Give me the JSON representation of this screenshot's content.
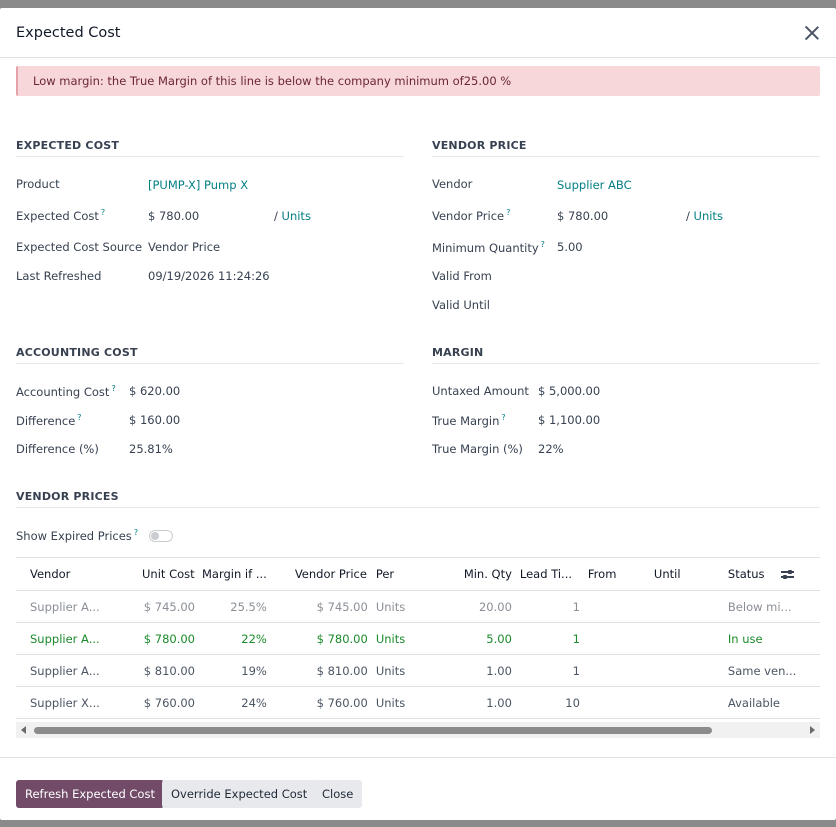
{
  "dialog": {
    "title": "Expected Cost"
  },
  "alert": {
    "text": "Low margin: the True Margin of this line is below the company minimum of25.00 %"
  },
  "expected_cost": {
    "title": "EXPECTED COST",
    "product_label": "Product",
    "product_value": "[PUMP-X] Pump X",
    "cost_label": "Expected Cost",
    "cost_value": "$ 780.00",
    "cost_uom": "/ Units",
    "source_label": "Expected Cost Source",
    "source_value": "Vendor Price",
    "refreshed_label": "Last Refreshed",
    "refreshed_value": "09/19/2026 11:24:26"
  },
  "vendor_price": {
    "title": "VENDOR PRICE",
    "vendor_label": "Vendor",
    "vendor_value": "Supplier ABC",
    "price_label": "Vendor Price",
    "price_value": "$ 780.00",
    "price_uom": "/ Units",
    "min_qty_label": "Minimum Quantity",
    "min_qty_value": "5.00",
    "valid_from_label": "Valid From",
    "valid_until_label": "Valid Until"
  },
  "accounting_cost": {
    "title": "ACCOUNTING COST",
    "cost_label": "Accounting Cost",
    "cost_value": "$ 620.00",
    "diff_label": "Difference",
    "diff_value": "$ 160.00",
    "diff_pct_label": "Difference (%)",
    "diff_pct_value": "25.81%"
  },
  "margin": {
    "title": "MARGIN",
    "untaxed_label": "Untaxed Amount",
    "untaxed_value": "$ 5,000.00",
    "true_margin_label": "True Margin",
    "true_margin_value": "$ 1,100.00",
    "true_margin_pct_label": "True Margin (%)",
    "true_margin_pct_value": "22%"
  },
  "vendor_prices": {
    "title": "VENDOR PRICES",
    "show_expired_label": "Show Expired Prices",
    "help_mark": "?",
    "columns": [
      "Vendor",
      "Unit Cost",
      "Margin if ...",
      "Vendor Price",
      "Per",
      "Min. Qty",
      "Lead Ti...",
      "From",
      "Until",
      "Status"
    ],
    "rows": [
      [
        "Supplier A...",
        "$ 745.00",
        "25.5%",
        "$ 745.00",
        "Units",
        "20.00",
        "1",
        "",
        "",
        "Below mi..."
      ],
      [
        "Supplier A...",
        "$ 780.00",
        "22%",
        "$ 780.00",
        "Units",
        "5.00",
        "1",
        "",
        "",
        "In use"
      ],
      [
        "Supplier A...",
        "$ 810.00",
        "19%",
        "$ 810.00",
        "Units",
        "1.00",
        "1",
        "",
        "",
        "Same ven..."
      ],
      [
        "Supplier X...",
        "$ 760.00",
        "24%",
        "$ 760.00",
        "Units",
        "1.00",
        "10",
        "",
        "",
        "Available"
      ]
    ]
  },
  "footer": {
    "refresh_label": "Refresh Expected Cost",
    "override_label": "Override Expected Cost",
    "close_label": "Close"
  }
}
